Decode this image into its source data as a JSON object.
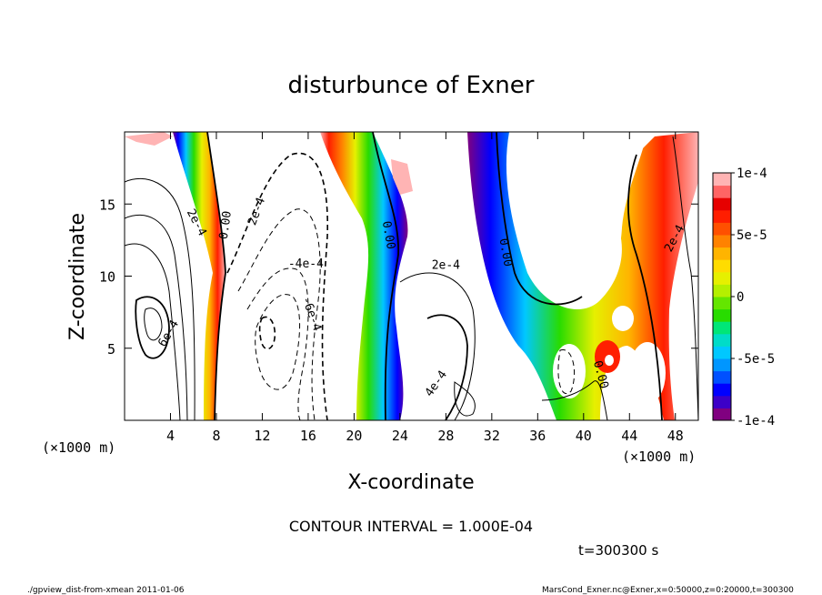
{
  "chart_data": {
    "type": "contour",
    "title": "disturbunce of Exner",
    "xlabel": "X-coordinate",
    "ylabel": "Z-coordinate",
    "x_unit_label": "(×1000 m)",
    "y_unit_label": "(×1000 m)",
    "x_ticks": [
      4,
      8,
      12,
      16,
      20,
      24,
      28,
      32,
      36,
      40,
      44,
      48
    ],
    "y_ticks": [
      5,
      10,
      15
    ],
    "xlim": [
      0,
      50
    ],
    "ylim": [
      0,
      20
    ],
    "colorbar": {
      "ticks": [
        {
          "value": 0.0001,
          "label": "1e-4"
        },
        {
          "value": 5e-05,
          "label": "5e-5"
        },
        {
          "value": 0,
          "label": "0"
        },
        {
          "value": -5e-05,
          "label": "-5e-5"
        },
        {
          "value": -0.0001,
          "label": "-1e-4"
        }
      ],
      "min": -0.0001,
      "max": 0.0001,
      "colors": [
        "#800080",
        "#3c00c8",
        "#0000ff",
        "#0050ff",
        "#0096ff",
        "#00c8ff",
        "#00dcc8",
        "#00e678",
        "#28dc00",
        "#64e600",
        "#b4f000",
        "#e6f000",
        "#ffdc00",
        "#ffb400",
        "#ff8200",
        "#ff5000",
        "#ff1e00",
        "#e60000",
        "#ff6464",
        "#ffb4b4"
      ]
    },
    "contour_labels": [
      {
        "text": "2e-4",
        "x": 6.0,
        "y": 13.6,
        "rot": 62
      },
      {
        "text": "0.00",
        "x": 9.1,
        "y": 13.5,
        "rot": -82
      },
      {
        "text": "2e-4",
        "x": 11.8,
        "y": 14.4,
        "rot": -70
      },
      {
        "text": "-4e-4",
        "x": 15.8,
        "y": 10.6,
        "rot": 0
      },
      {
        "text": "-6e-4",
        "x": 16.0,
        "y": 7.3,
        "rot": 70
      },
      {
        "text": "6e-4",
        "x": 4.1,
        "y": 5.9,
        "rot": -60
      },
      {
        "text": "0.00",
        "x": 22.7,
        "y": 12.8,
        "rot": 80
      },
      {
        "text": "2e-4",
        "x": 28.0,
        "y": 10.5,
        "rot": 0
      },
      {
        "text": "4e-4",
        "x": 27.4,
        "y": 2.4,
        "rot": -55
      },
      {
        "text": "0.00",
        "x": 32.9,
        "y": 11.6,
        "rot": 80
      },
      {
        "text": "0.00",
        "x": 41.2,
        "y": 3.1,
        "rot": 75
      },
      {
        "text": "2e-4",
        "x": 48.2,
        "y": 12.5,
        "rot": -62
      }
    ],
    "footer": {
      "contour_interval": "CONTOUR INTERVAL = 1.000E-04",
      "time": "t=300300 s",
      "left_note": "./gpview_dist-from-xmean  2011-01-06",
      "right_note": "MarsCond_Exner.nc@Exner,x=0:50000,z=0:20000,t=300300"
    }
  }
}
